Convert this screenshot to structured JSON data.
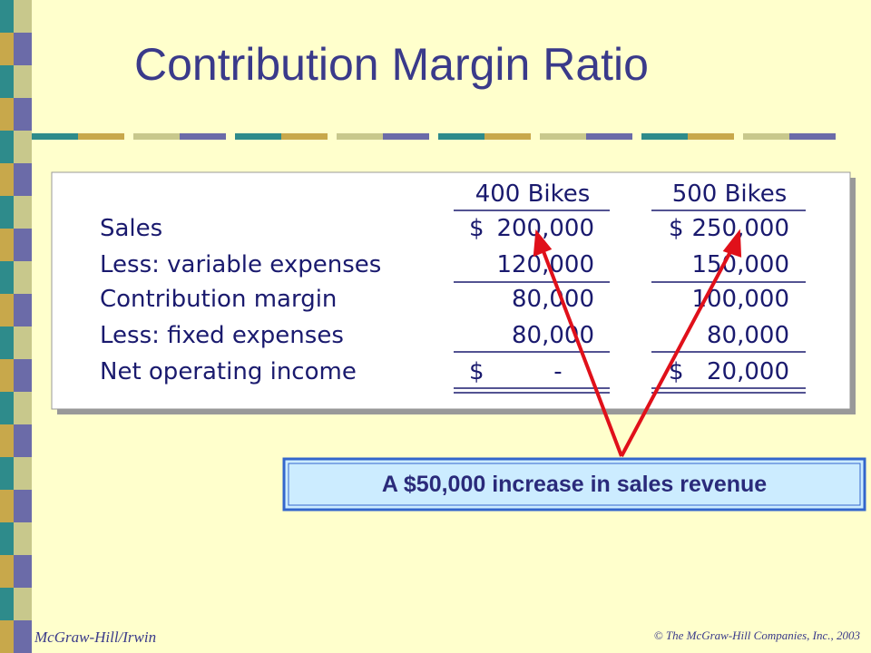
{
  "title": "Contribution Margin Ratio",
  "table": {
    "headers": [
      "400 Bikes",
      "500 Bikes"
    ],
    "rows": [
      {
        "label": "Sales",
        "cells": [
          [
            "$",
            "200,000"
          ],
          [
            "$",
            "250,000"
          ]
        ]
      },
      {
        "label": "Less: variable expenses",
        "cells": [
          [
            "",
            "120,000"
          ],
          [
            "",
            "150,000"
          ]
        ]
      },
      {
        "label": "Contribution margin",
        "cells": [
          [
            "",
            "80,000"
          ],
          [
            "",
            "100,000"
          ]
        ]
      },
      {
        "label": "Less: fixed expenses",
        "cells": [
          [
            "",
            "80,000"
          ],
          [
            "",
            "80,000"
          ]
        ]
      },
      {
        "label": "Net operating income",
        "cells": [
          [
            "$",
            "-"
          ],
          [
            "$",
            "20,000"
          ]
        ]
      }
    ]
  },
  "callout": "A $50,000 increase in sales revenue",
  "footer": {
    "publisher": "McGraw-Hill/Irwin",
    "copyright": "© The McGraw-Hill Companies, Inc., 2003"
  }
}
